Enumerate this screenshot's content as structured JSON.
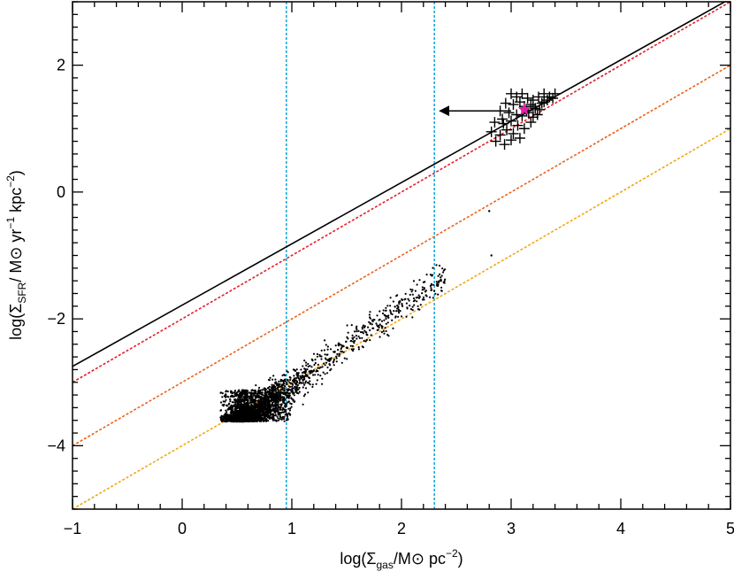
{
  "chart_data": {
    "type": "scatter",
    "xlabel": {
      "prefix": "log(Σ",
      "sub": "gas",
      "mid": "/M",
      "sym": "⊙",
      "unit": " pc",
      "sup": "−2",
      "suffix": ")"
    },
    "ylabel": {
      "prefix": "log(Σ",
      "sub": "SFR",
      "mid": "/ M",
      "sym": "⊙",
      "unit1": " yr",
      "sup1": "−1",
      "unit2": " kpc",
      "sup2": "−2",
      "suffix": ")"
    },
    "xlim": [
      -1,
      5
    ],
    "ylim": [
      -5,
      3
    ],
    "xticks": [
      {
        "value": -1,
        "label": "−1"
      },
      {
        "value": 0,
        "label": "0"
      },
      {
        "value": 1,
        "label": "1"
      },
      {
        "value": 2,
        "label": "2"
      },
      {
        "value": 3,
        "label": "3"
      },
      {
        "value": 4,
        "label": "4"
      },
      {
        "value": 5,
        "label": "5"
      }
    ],
    "yticks": [
      {
        "value": -4,
        "label": "−4"
      },
      {
        "value": -2,
        "label": "−2"
      },
      {
        "value": 0,
        "label": "0"
      },
      {
        "value": 2,
        "label": "2"
      }
    ],
    "grid": false,
    "lines": [
      {
        "style": "solid",
        "color": "#000000",
        "x": [
          -1,
          5
        ],
        "y": [
          -2.75,
          3.05
        ]
      },
      {
        "style": "dotted",
        "color": "#e0202a",
        "x": [
          -1,
          5
        ],
        "y": [
          -3.0,
          3.0
        ]
      },
      {
        "style": "dotted",
        "color": "#e8641e",
        "x": [
          -1,
          5
        ],
        "y": [
          -4.0,
          2.0
        ]
      },
      {
        "style": "dotted",
        "color": "#f0a818",
        "x": [
          -1,
          5
        ],
        "y": [
          -5.0,
          1.0
        ]
      }
    ],
    "vlines": [
      {
        "style": "dotted",
        "color": "#20a8d8",
        "x": 0.95
      },
      {
        "style": "dotted",
        "color": "#20a8d8",
        "x": 2.3
      }
    ],
    "arrow": {
      "from": [
        3.0,
        1.28
      ],
      "to": [
        2.35,
        1.28
      ],
      "color": "#000000"
    },
    "star": {
      "x": 3.12,
      "y": 1.3,
      "color": "#e020a8"
    },
    "plus_points": {
      "x": [
        3.0,
        3.05,
        3.1,
        3.15,
        3.2,
        3.25,
        3.3,
        3.35,
        3.4,
        2.95,
        3.02,
        3.08,
        3.12,
        3.18,
        3.22,
        3.28,
        3.33,
        2.9,
        2.98,
        3.05,
        3.1,
        3.16,
        3.2,
        3.26,
        2.85,
        2.93,
        3.0,
        3.06,
        3.12,
        3.18,
        2.82,
        2.9,
        2.96,
        3.02,
        3.08,
        2.86,
        2.94,
        3.0,
        3.2,
        3.3,
        3.38,
        2.92,
        3.14,
        3.24
      ],
      "y": [
        1.55,
        1.5,
        1.55,
        1.48,
        1.45,
        1.5,
        1.55,
        1.5,
        1.55,
        1.4,
        1.38,
        1.42,
        1.35,
        1.38,
        1.32,
        1.4,
        1.45,
        1.28,
        1.25,
        1.22,
        1.2,
        1.25,
        1.18,
        1.3,
        1.1,
        1.08,
        1.12,
        1.05,
        1.0,
        1.1,
        0.95,
        0.9,
        0.98,
        0.92,
        0.85,
        0.8,
        0.75,
        0.82,
        1.35,
        1.42,
        1.48,
        1.15,
        1.28,
        1.22
      ]
    },
    "dots": {
      "count": 3000,
      "x_range": [
        0.35,
        2.45
      ],
      "y_floor": -3.62,
      "relation": "ridge y ≈ -3.55 + 1.25·(x − 0.6)",
      "outliers_x": [
        2.8,
        2.82
      ],
      "outliers_y": [
        -0.3,
        -1.0
      ]
    }
  }
}
